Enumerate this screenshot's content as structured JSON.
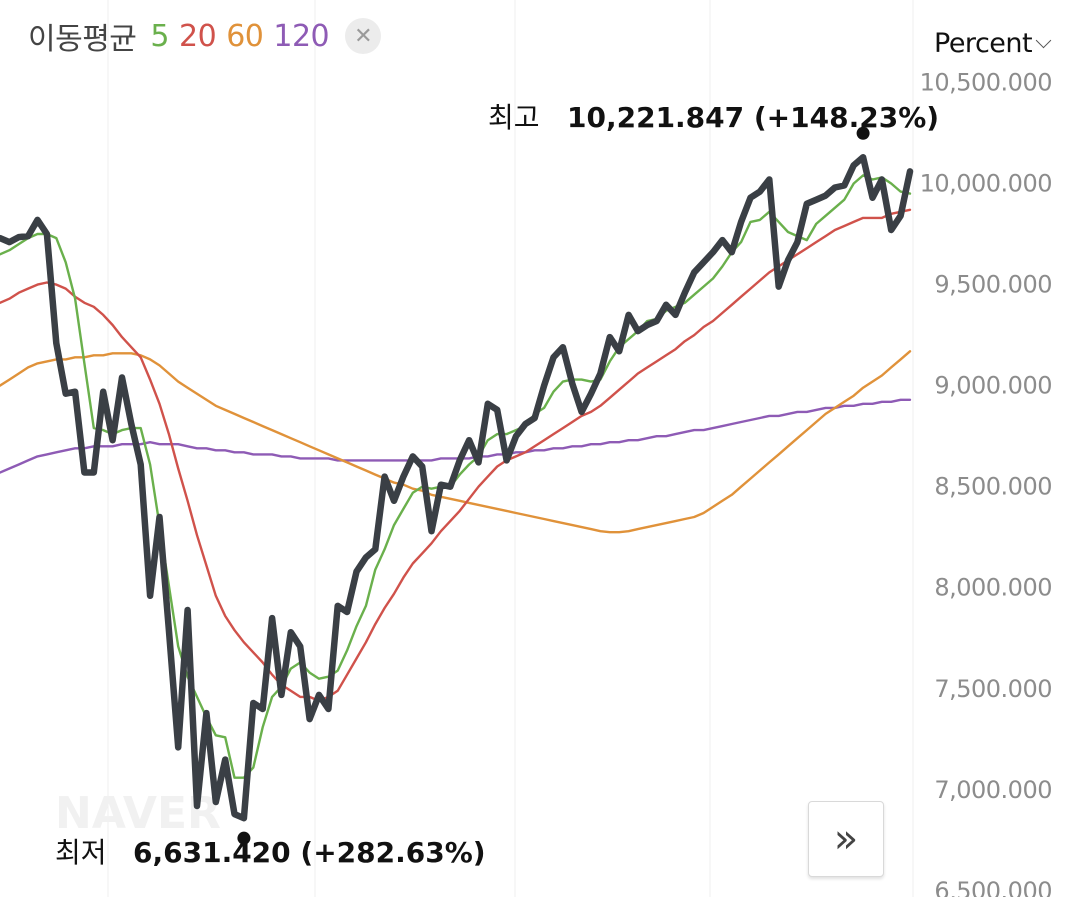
{
  "legend": {
    "title": "이동평균",
    "items": [
      {
        "label": "5",
        "color": "#6ab04c"
      },
      {
        "label": "20",
        "color": "#d0524b"
      },
      {
        "label": "60",
        "color": "#e0923a"
      },
      {
        "label": "120",
        "color": "#8e5bb5"
      }
    ],
    "close_icon": "close-icon"
  },
  "unit_selector": {
    "label": "Percent",
    "icon": "chevron-down-icon"
  },
  "watermark": "NAVER",
  "nav_button": {
    "icon": "double-chevron-right-icon",
    "glyph": "»"
  },
  "annotations": {
    "high": {
      "label": "최고",
      "value": "10,221.847 (+148.23%)"
    },
    "low": {
      "label": "최저",
      "value": "6,631.420 (+282.63%)"
    }
  },
  "chart_data": {
    "type": "line",
    "y_ticks": [
      10500,
      10000,
      9500,
      9000,
      8500,
      8000,
      7500,
      7000,
      6500
    ],
    "y_tick_labels": [
      "10,500.000",
      "10,000.000",
      "9,500.000",
      "9,000.000",
      "8,500.000",
      "8,000.000",
      "7,500.000",
      "7,000.000",
      "6,500.000"
    ],
    "ylim": [
      6460,
      10700
    ],
    "grid": true,
    "price": [
      9720,
      9700,
      9725,
      9730,
      9810,
      9740,
      9200,
      8950,
      8960,
      8560,
      8560,
      8960,
      8720,
      9030,
      8800,
      8600,
      7950,
      8340,
      7780,
      7200,
      7880,
      6910,
      7370,
      6930,
      7140,
      6870,
      6850,
      7420,
      7390,
      7840,
      7460,
      7770,
      7700,
      7340,
      7460,
      7390,
      7900,
      7870,
      8070,
      8140,
      8180,
      8540,
      8420,
      8540,
      8640,
      8590,
      8270,
      8500,
      8490,
      8620,
      8720,
      8610,
      8900,
      8870,
      8620,
      8740,
      8800,
      8830,
      8990,
      9130,
      9180,
      9000,
      8860,
      8950,
      9050,
      9230,
      9160,
      9340,
      9260,
      9290,
      9310,
      9390,
      9340,
      9450,
      9550,
      9600,
      9650,
      9710,
      9650,
      9800,
      9920,
      9950,
      10010,
      9480,
      9610,
      9700,
      9890,
      9910,
      9930,
      9970,
      9980,
      10080,
      10120,
      9920,
      10010,
      9760,
      9830,
      10050
    ],
    "series": [
      {
        "name": "5",
        "color": "#6ab04c",
        "values": [
          9640,
          9660,
          9690,
          9720,
          9740,
          9740,
          9720,
          9600,
          9420,
          9100,
          8780,
          8770,
          8750,
          8770,
          8780,
          8780,
          8600,
          8300,
          8000,
          7700,
          7550,
          7450,
          7350,
          7260,
          7250,
          7050,
          7050,
          7100,
          7300,
          7450,
          7500,
          7590,
          7620,
          7570,
          7540,
          7550,
          7580,
          7680,
          7800,
          7900,
          8080,
          8180,
          8300,
          8380,
          8460,
          8490,
          8480,
          8490,
          8490,
          8550,
          8600,
          8640,
          8720,
          8750,
          8750,
          8770,
          8790,
          8850,
          8880,
          8960,
          9010,
          9020,
          9020,
          9010,
          9020,
          9110,
          9180,
          9220,
          9260,
          9310,
          9320,
          9360,
          9380,
          9400,
          9440,
          9480,
          9520,
          9580,
          9650,
          9700,
          9800,
          9810,
          9850,
          9800,
          9750,
          9730,
          9710,
          9790,
          9830,
          9870,
          9910,
          9990,
          10030,
          10010,
          10020,
          9990,
          9950,
          9940
        ]
      },
      {
        "name": "20",
        "color": "#d0524b",
        "values": [
          9400,
          9420,
          9450,
          9470,
          9490,
          9500,
          9490,
          9470,
          9430,
          9400,
          9380,
          9340,
          9290,
          9230,
          9180,
          9130,
          9020,
          8900,
          8750,
          8580,
          8420,
          8250,
          8100,
          7950,
          7850,
          7780,
          7720,
          7670,
          7620,
          7560,
          7510,
          7480,
          7450,
          7450,
          7430,
          7450,
          7480,
          7560,
          7640,
          7720,
          7810,
          7890,
          7960,
          8040,
          8110,
          8160,
          8210,
          8270,
          8320,
          8370,
          8430,
          8490,
          8540,
          8590,
          8620,
          8640,
          8660,
          8690,
          8720,
          8750,
          8780,
          8810,
          8840,
          8860,
          8890,
          8930,
          8970,
          9010,
          9050,
          9080,
          9110,
          9140,
          9170,
          9210,
          9240,
          9280,
          9310,
          9350,
          9390,
          9430,
          9470,
          9510,
          9550,
          9580,
          9610,
          9640,
          9670,
          9700,
          9730,
          9760,
          9780,
          9800,
          9820,
          9820,
          9820,
          9840,
          9850,
          9860
        ]
      },
      {
        "name": "60",
        "color": "#e0923a",
        "values": [
          8990,
          9020,
          9050,
          9080,
          9100,
          9110,
          9120,
          9120,
          9130,
          9130,
          9140,
          9140,
          9150,
          9150,
          9150,
          9140,
          9120,
          9090,
          9050,
          9010,
          8980,
          8950,
          8920,
          8890,
          8870,
          8850,
          8830,
          8810,
          8790,
          8770,
          8750,
          8730,
          8710,
          8690,
          8670,
          8650,
          8630,
          8610,
          8590,
          8570,
          8550,
          8530,
          8510,
          8500,
          8480,
          8470,
          8450,
          8440,
          8430,
          8420,
          8410,
          8400,
          8390,
          8380,
          8370,
          8360,
          8350,
          8340,
          8330,
          8320,
          8310,
          8300,
          8290,
          8280,
          8270,
          8265,
          8265,
          8270,
          8280,
          8290,
          8300,
          8310,
          8320,
          8330,
          8340,
          8360,
          8390,
          8420,
          8450,
          8490,
          8530,
          8570,
          8610,
          8650,
          8690,
          8730,
          8770,
          8810,
          8850,
          8880,
          8910,
          8940,
          8980,
          9010,
          9040,
          9080,
          9120,
          9160
        ]
      },
      {
        "name": "120",
        "color": "#8e5bb5",
        "values": [
          8560,
          8580,
          8600,
          8620,
          8640,
          8650,
          8660,
          8670,
          8680,
          8680,
          8690,
          8690,
          8690,
          8700,
          8700,
          8700,
          8710,
          8700,
          8700,
          8700,
          8690,
          8680,
          8680,
          8670,
          8670,
          8660,
          8660,
          8650,
          8650,
          8650,
          8640,
          8640,
          8630,
          8630,
          8630,
          8630,
          8620,
          8620,
          8620,
          8620,
          8620,
          8620,
          8620,
          8620,
          8620,
          8620,
          8620,
          8630,
          8630,
          8630,
          8630,
          8640,
          8640,
          8650,
          8650,
          8660,
          8660,
          8670,
          8670,
          8680,
          8680,
          8690,
          8690,
          8700,
          8700,
          8710,
          8710,
          8720,
          8720,
          8730,
          8740,
          8740,
          8750,
          8760,
          8770,
          8770,
          8780,
          8790,
          8800,
          8810,
          8820,
          8830,
          8840,
          8840,
          8850,
          8860,
          8860,
          8870,
          8880,
          8880,
          8890,
          8890,
          8900,
          8900,
          8910,
          8910,
          8920,
          8920
        ]
      }
    ],
    "high_index": 92,
    "low_index": 26
  }
}
